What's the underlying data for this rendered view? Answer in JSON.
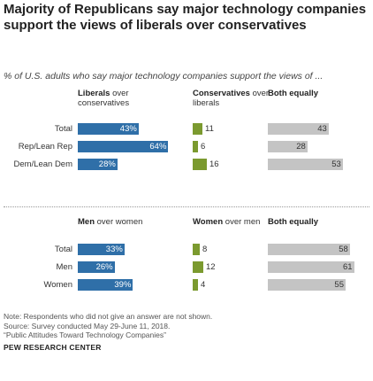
{
  "title": "Majority of Republicans say major technology companies support the views of liberals over conservatives",
  "subtitle": "% of U.S. adults who say major technology companies support the views of ...",
  "chart_data": [
    {
      "type": "bar",
      "columns": [
        {
          "bold": "Liberals",
          "rest": " over conservatives"
        },
        {
          "bold": "Conservatives",
          "rest": " over liberals"
        },
        {
          "bold": "Both equally",
          "rest": ""
        }
      ],
      "categories": [
        "Total",
        "Rep/Lean Rep",
        "Dem/Lean Dem"
      ],
      "series": [
        {
          "name": "Liberals over conservatives",
          "values": [
            43,
            64,
            28
          ]
        },
        {
          "name": "Conservatives over liberals",
          "values": [
            11,
            6,
            16
          ]
        },
        {
          "name": "Both equally",
          "values": [
            43,
            28,
            53
          ]
        }
      ]
    },
    {
      "type": "bar",
      "columns": [
        {
          "bold": "Men",
          "rest": " over women"
        },
        {
          "bold": "Women",
          "rest": " over men"
        },
        {
          "bold": "Both equally",
          "rest": ""
        }
      ],
      "categories": [
        "Total",
        "Men",
        "Women"
      ],
      "series": [
        {
          "name": "Men over women",
          "values": [
            33,
            26,
            39
          ]
        },
        {
          "name": "Women over men",
          "values": [
            8,
            12,
            4
          ]
        },
        {
          "name": "Both equally",
          "values": [
            58,
            61,
            55
          ]
        }
      ]
    }
  ],
  "notes": [
    "Note: Respondents who did not give an answer are not shown.",
    "Source: Survey conducted May 29-June 11, 2018.",
    "“Public Attitudes Toward Technology Companies”"
  ],
  "source_org": "PEW RESEARCH CENTER",
  "colors": {
    "liberals_men": "#2f6fa8",
    "conservatives_women": "#7b9a2f",
    "both": "#c4c4c4"
  }
}
